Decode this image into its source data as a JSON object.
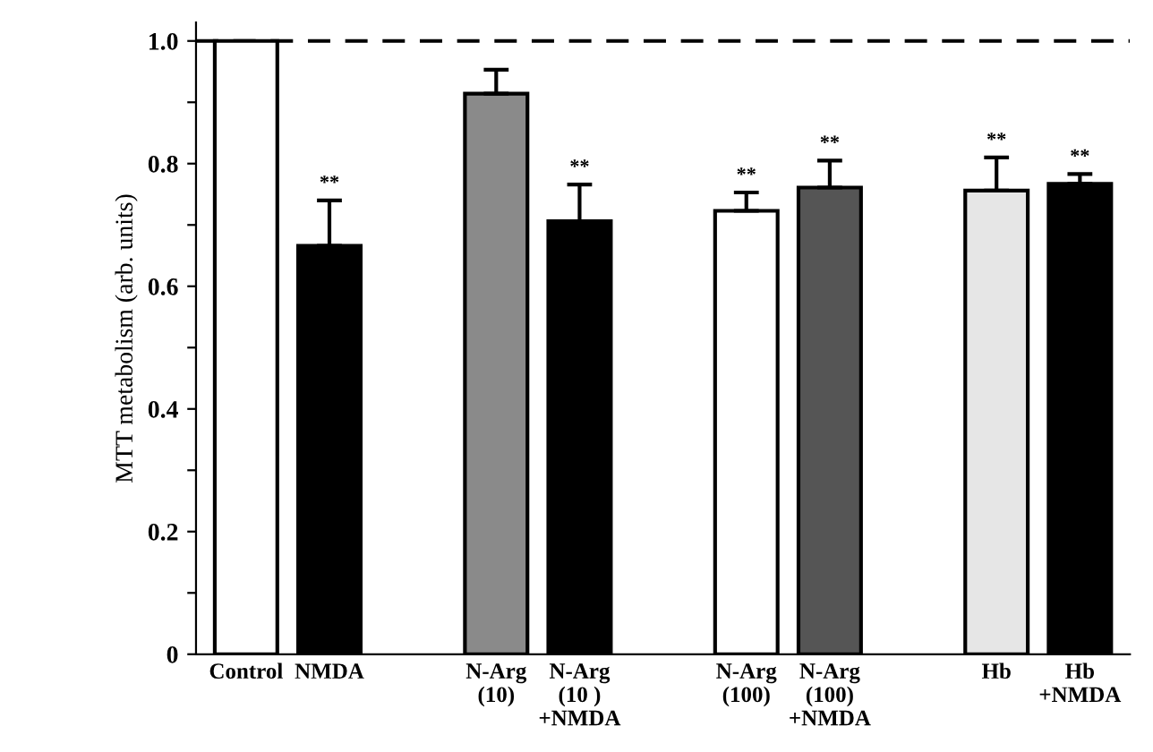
{
  "chart_data": {
    "type": "bar",
    "ylabel": "MTT metabolism (arb. units)",
    "categories": [
      "Control",
      "NMDA",
      null,
      "N-Arg\n(10)",
      "N-Arg\n(10 )\n+NMDA",
      null,
      "N-Arg\n(100)",
      "N-Arg\n(100)\n+NMDA",
      null,
      "Hb",
      "Hb\n+NMDA"
    ],
    "values": [
      1.0,
      0.666,
      null,
      0.914,
      0.706,
      null,
      0.723,
      0.761,
      null,
      0.756,
      0.767
    ],
    "errors": [
      null,
      [
        0.666,
        0.74
      ],
      null,
      [
        0.914,
        0.953
      ],
      [
        0.706,
        0.766
      ],
      null,
      [
        0.723,
        0.753
      ],
      [
        0.761,
        0.805
      ],
      null,
      [
        0.756,
        0.81
      ],
      [
        0.767,
        0.783
      ]
    ],
    "colors": [
      "#ffffff",
      "#000000",
      null,
      "#8a8a8a",
      "#000000",
      null,
      "#ffffff",
      "#555555",
      null,
      "#e6e6e6",
      "#000000"
    ],
    "ylim": [
      0,
      1.03
    ],
    "yticks": [
      {
        "value": 0,
        "label": "0"
      },
      {
        "value": 0.1,
        "label": null
      },
      0.2,
      {
        "value": 0.3,
        "label": null
      },
      0.4,
      {
        "value": 0.5,
        "label": null
      },
      0.6,
      {
        "value": 0.7,
        "label": null
      },
      0.8,
      {
        "value": 0.9,
        "label": null
      },
      {
        "value": 1.0,
        "label": "1.0"
      }
    ],
    "ref_lines": [
      {
        "axis": "y",
        "value": 1.0,
        "line_style": "dashed",
        "color": "#000000"
      }
    ],
    "annotations": [
      {
        "text": "**",
        "x": "NMDA",
        "y": 0.74
      },
      {
        "text": "**",
        "x": "N-Arg\n(10 )\n+NMDA",
        "y": 0.766
      },
      {
        "text": "**",
        "x": "N-Arg\n(100)",
        "y": 0.753
      },
      {
        "text": "**",
        "x": "N-Arg\n(100)\n+NMDA",
        "y": 0.805
      },
      {
        "text": "**",
        "x": "Hb",
        "y": 0.81
      },
      {
        "text": "**",
        "x": "Hb\n+NMDA",
        "y": 0.783
      }
    ],
    "grid": false,
    "legend": false
  }
}
